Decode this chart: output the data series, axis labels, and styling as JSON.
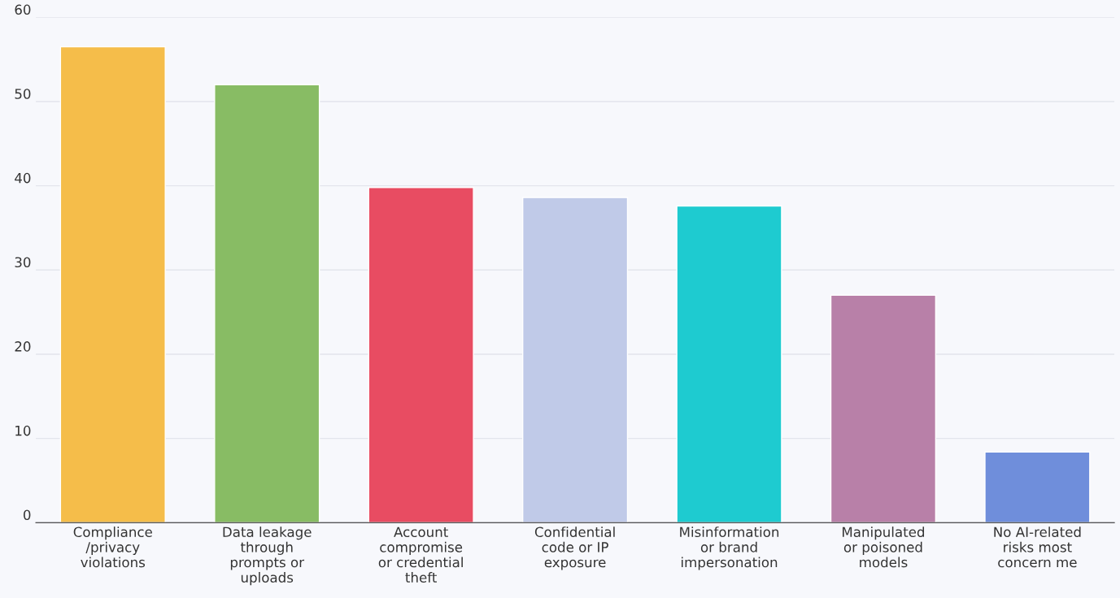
{
  "chart_data": {
    "type": "bar",
    "categories": [
      "Compliance\n/privacy\nviolations",
      "Data leakage\nthrough\nprompts or\nuploads",
      "Account\ncompromise\nor credential\ntheft",
      "Confidential\ncode or IP\nexposure",
      "Misinformation\nor brand\nimpersonation",
      "Manipulated\nor poisoned\nmodels",
      "No AI-related\nrisks most\nconcern me"
    ],
    "values": [
      56.5,
      52.0,
      39.8,
      38.6,
      37.6,
      27.0,
      8.4
    ],
    "colors": [
      "#f5bd4a",
      "#88bc64",
      "#e84c62",
      "#c0cae8",
      "#1ecbd0",
      "#b880a8",
      "#6f8edb"
    ],
    "ylim": [
      0,
      60
    ],
    "yticks": [
      0,
      10,
      20,
      30,
      40,
      50,
      60
    ],
    "grid": "y",
    "legend": false
  }
}
